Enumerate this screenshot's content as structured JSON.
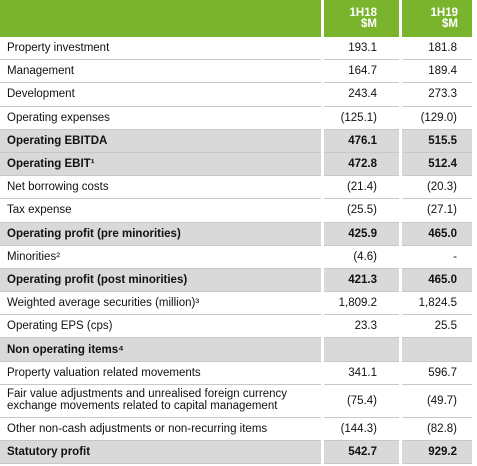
{
  "table": {
    "columns": [
      {
        "period": "1H18",
        "unit": "$M"
      },
      {
        "period": "1H19",
        "unit": "$M"
      }
    ],
    "rows": [
      {
        "label": "Property investment",
        "values": [
          "193.1",
          "181.8"
        ]
      },
      {
        "label": "Management",
        "values": [
          "164.7",
          "189.4"
        ]
      },
      {
        "label": "Development",
        "values": [
          "243.4",
          "273.3"
        ]
      },
      {
        "label": "Operating expenses",
        "values": [
          "(125.1)",
          "(129.0)"
        ]
      },
      {
        "label": "Operating EBITDA",
        "values": [
          "476.1",
          "515.5"
        ],
        "bold": true
      },
      {
        "label": "Operating EBIT¹",
        "values": [
          "472.8",
          "512.4"
        ],
        "bold": true
      },
      {
        "label": "Net borrowing costs",
        "values": [
          "(21.4)",
          "(20.3)"
        ]
      },
      {
        "label": "Tax expense",
        "values": [
          "(25.5)",
          "(27.1)"
        ]
      },
      {
        "label": "Operating profit (pre minorities)",
        "values": [
          "425.9",
          "465.0"
        ],
        "bold": true
      },
      {
        "label": "Minorities²",
        "values": [
          "(4.6)",
          "-"
        ]
      },
      {
        "label": "Operating profit (post minorities)",
        "values": [
          "421.3",
          "465.0"
        ],
        "bold": true
      },
      {
        "label": "Weighted average securities (million)³",
        "values": [
          "1,809.2",
          "1,824.5"
        ]
      },
      {
        "label": "Operating EPS (cps)",
        "values": [
          "23.3",
          "25.5"
        ]
      },
      {
        "label": "Non operating items⁴",
        "values": [
          "",
          ""
        ],
        "bold": true
      },
      {
        "label": "Property valuation related movements",
        "values": [
          "341.1",
          "596.7"
        ]
      },
      {
        "label": [
          "Fair value adjustments and unrealised foreign currency",
          "exchange movements related to capital management"
        ],
        "values": [
          "(75.4)",
          "(49.7)"
        ]
      },
      {
        "label": "Other non-cash adjustments or non-recurring items",
        "values": [
          "(144.3)",
          "(82.8)"
        ]
      },
      {
        "label": "Statutory profit",
        "values": [
          "542.7",
          "929.2"
        ],
        "bold": true
      }
    ]
  }
}
